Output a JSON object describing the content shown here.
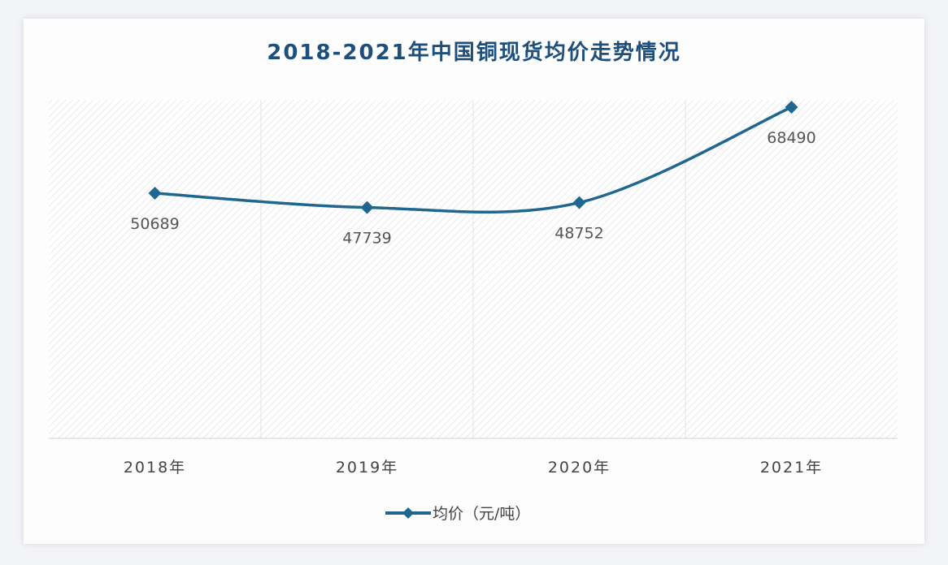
{
  "chart_data": {
    "type": "line",
    "title": "2018-2021年中国铜现货均价走势情况",
    "categories": [
      "2018年",
      "2019年",
      "2020年",
      "2021年"
    ],
    "series": [
      {
        "name": "均价（元/吨）",
        "values": [
          50689,
          47739,
          48752,
          68490
        ],
        "color": "#1f6690",
        "marker": "diamond",
        "smooth": true
      }
    ],
    "data_labels": [
      "50689",
      "47739",
      "48752",
      "68490"
    ],
    "xlabel": "",
    "ylabel": "",
    "ylim": [
      0,
      70000
    ],
    "y_axis_visible": false,
    "grid": "vertical",
    "plot_background": "diagonal-hatch",
    "legend": "bottom"
  }
}
